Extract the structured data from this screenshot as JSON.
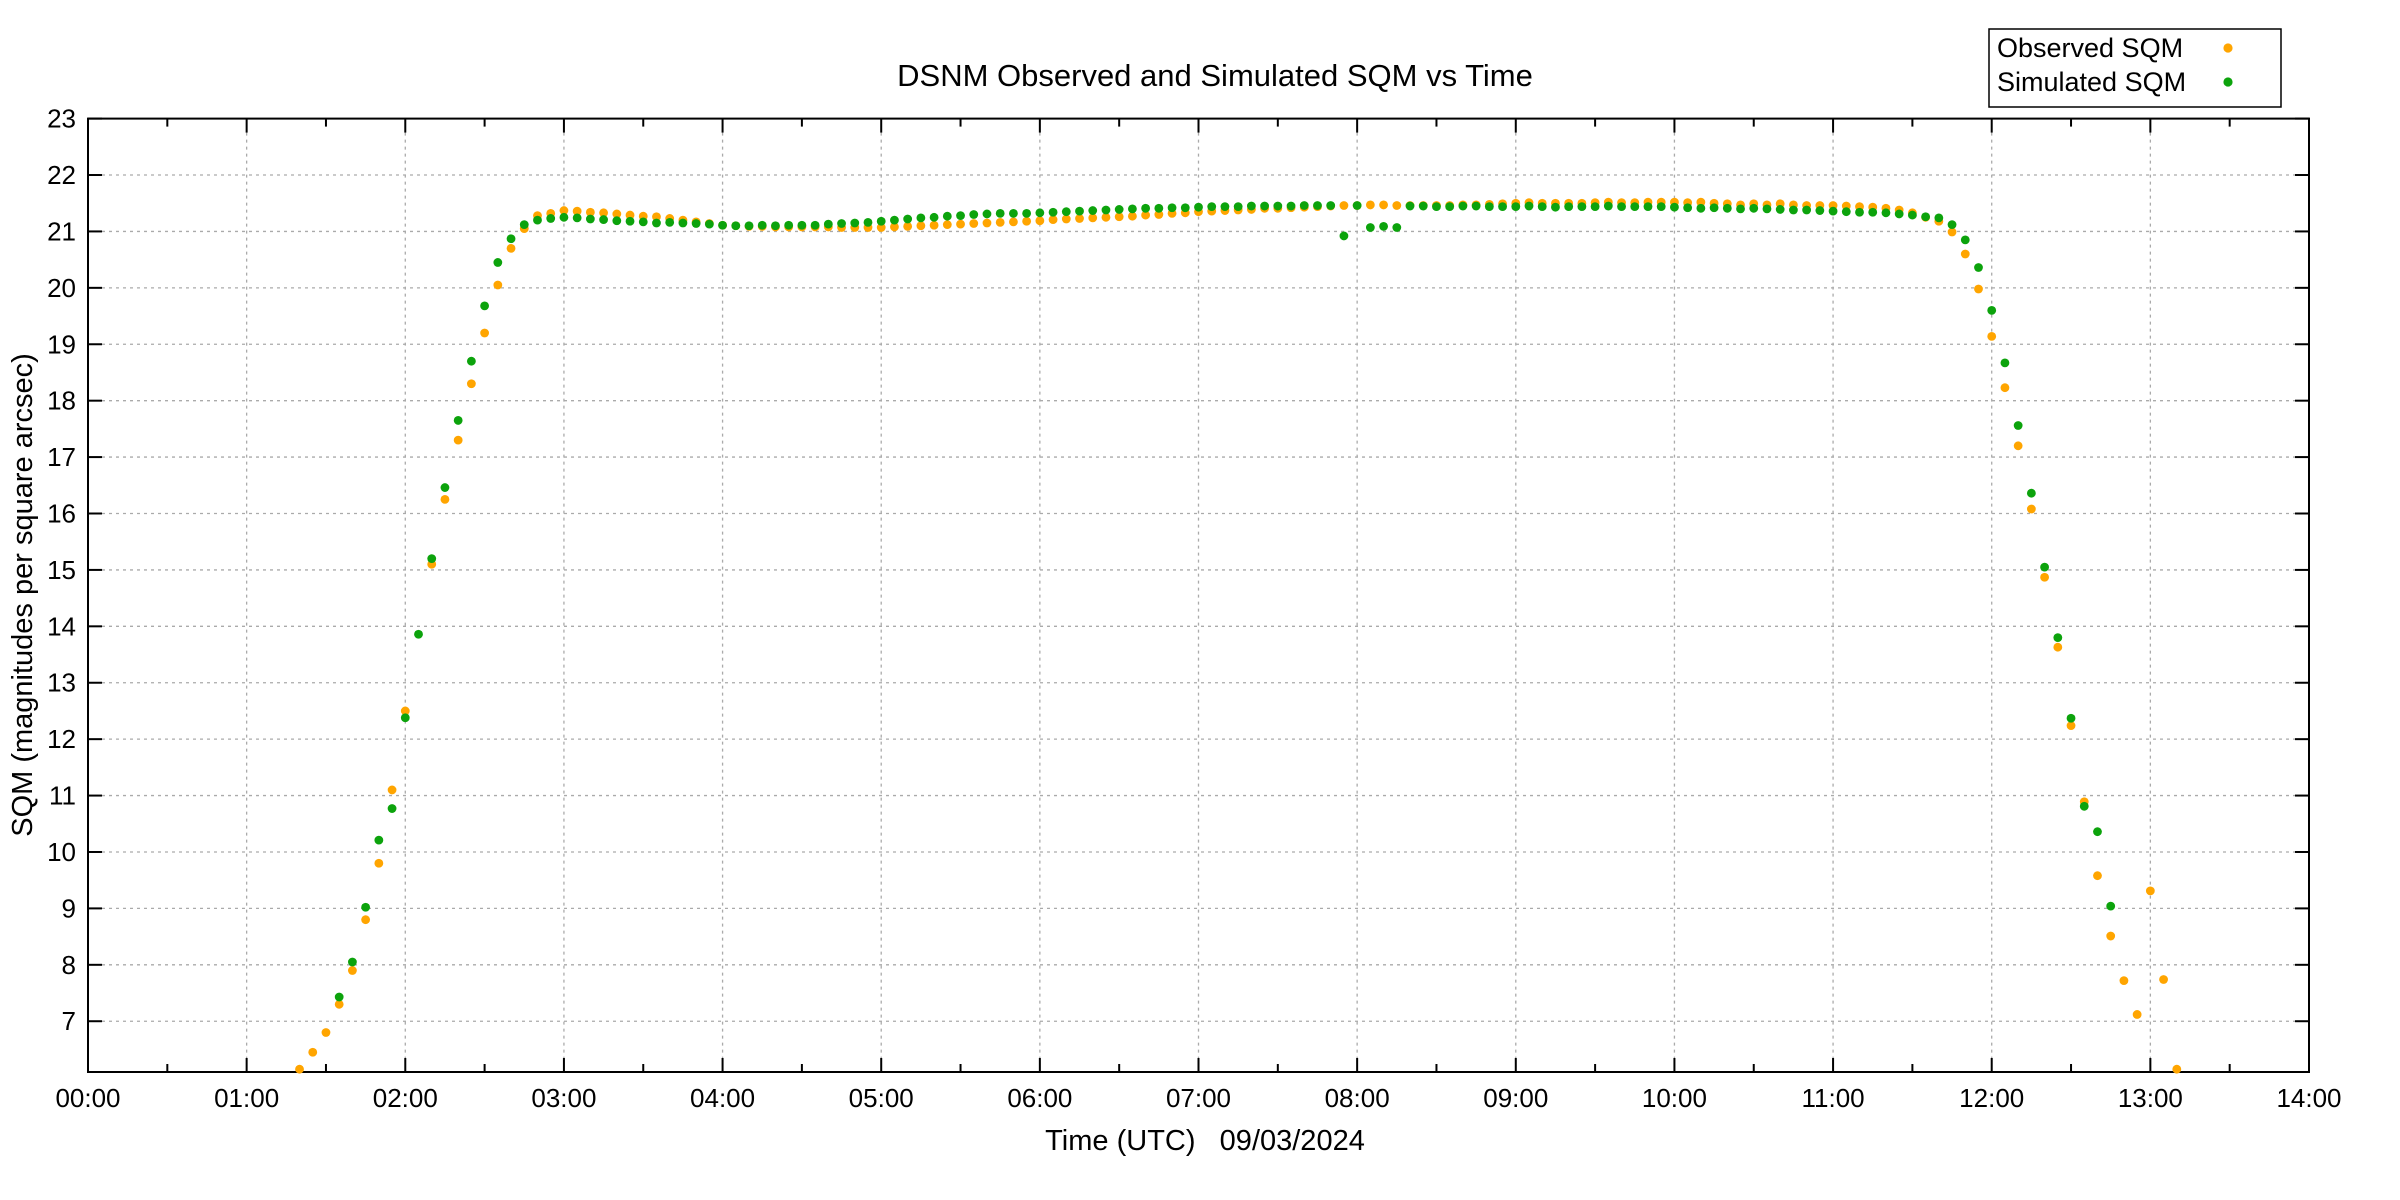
{
  "title": "DSNM Observed and Simulated SQM vs Time",
  "legend": {
    "position": "top-right",
    "items": [
      {
        "label": "Observed SQM",
        "color": "#ffa500"
      },
      {
        "label": "Simulated SQM",
        "color": "#0ca30c"
      }
    ]
  },
  "axes": {
    "label_color": "#00a070",
    "grid_color": "#aaaaaa",
    "border_color": "#000000",
    "x_label": "Time (UTC)   09/03/2024",
    "y_label": "SQM (magnitudes per square arcsec)",
    "x_tick_labels": [
      "00:00",
      "01:00",
      "02:00",
      "03:00",
      "04:00",
      "05:00",
      "06:00",
      "07:00",
      "08:00",
      "09:00",
      "10:00",
      "11:00",
      "12:00",
      "13:00",
      "14:00"
    ],
    "y_tick_labels": [
      7,
      8,
      9,
      10,
      11,
      12,
      13,
      14,
      15,
      16,
      17,
      18,
      19,
      20,
      21,
      22,
      23
    ]
  },
  "chart_data": {
    "type": "scatter",
    "title": "DSNM Observed and Simulated SQM vs Time",
    "xlabel": "Time (UTC)   09/03/2024",
    "ylabel": "SQM (magnitudes per square arcsec)",
    "xlim_hours": [
      0,
      14
    ],
    "ylim": [
      6.1,
      23
    ],
    "grid": true,
    "legend_position": "top-right",
    "x_ticks_hours": [
      0,
      1,
      2,
      3,
      4,
      5,
      6,
      7,
      8,
      9,
      10,
      11,
      12,
      13,
      14
    ],
    "y_ticks": [
      7,
      8,
      9,
      10,
      11,
      12,
      13,
      14,
      15,
      16,
      17,
      18,
      19,
      20,
      21,
      22,
      23
    ],
    "series": [
      {
        "name": "Observed SQM",
        "color": "#ffa500",
        "points": [
          [
            "01:20",
            6.15
          ],
          [
            "01:25",
            6.45
          ],
          [
            "01:30",
            6.8
          ],
          [
            "01:35",
            7.3
          ],
          [
            "01:40",
            7.9
          ],
          [
            "01:45",
            8.8
          ],
          [
            "01:50",
            9.8
          ],
          [
            "01:55",
            11.1
          ],
          [
            "02:00",
            12.5
          ],
          [
            "02:10",
            15.1
          ],
          [
            "02:15",
            16.25
          ],
          [
            "02:20",
            17.3
          ],
          [
            "02:25",
            18.3
          ],
          [
            "02:30",
            19.2
          ],
          [
            "02:35",
            20.05
          ],
          [
            "02:40",
            20.7
          ],
          [
            "02:45",
            21.05
          ],
          [
            "02:50",
            21.28
          ],
          [
            "02:55",
            21.32
          ],
          [
            "03:00",
            21.37
          ],
          [
            "03:05",
            21.36
          ],
          [
            "03:10",
            21.34
          ],
          [
            "03:15",
            21.33
          ],
          [
            "03:20",
            21.31
          ],
          [
            "03:25",
            21.29
          ],
          [
            "03:30",
            21.27
          ],
          [
            "03:35",
            21.26
          ],
          [
            "03:40",
            21.23
          ],
          [
            "03:45",
            21.2
          ],
          [
            "03:50",
            21.17
          ],
          [
            "03:55",
            21.14
          ],
          [
            "04:00",
            21.11
          ],
          [
            "04:05",
            21.1
          ],
          [
            "04:10",
            21.09
          ],
          [
            "04:15",
            21.09
          ],
          [
            "04:20",
            21.08
          ],
          [
            "04:25",
            21.08
          ],
          [
            "04:30",
            21.08
          ],
          [
            "04:35",
            21.08
          ],
          [
            "04:40",
            21.08
          ],
          [
            "04:45",
            21.07
          ],
          [
            "04:50",
            21.07
          ],
          [
            "04:55",
            21.07
          ],
          [
            "05:00",
            21.07
          ],
          [
            "05:05",
            21.08
          ],
          [
            "05:10",
            21.09
          ],
          [
            "05:15",
            21.1
          ],
          [
            "05:20",
            21.11
          ],
          [
            "05:25",
            21.12
          ],
          [
            "05:30",
            21.13
          ],
          [
            "05:35",
            21.14
          ],
          [
            "05:40",
            21.15
          ],
          [
            "05:45",
            21.16
          ],
          [
            "05:50",
            21.17
          ],
          [
            "05:55",
            21.18
          ],
          [
            "06:00",
            21.19
          ],
          [
            "06:05",
            21.21
          ],
          [
            "06:10",
            21.22
          ],
          [
            "06:15",
            21.23
          ],
          [
            "06:20",
            21.24
          ],
          [
            "06:25",
            21.25
          ],
          [
            "06:30",
            21.26
          ],
          [
            "06:35",
            21.27
          ],
          [
            "06:40",
            21.29
          ],
          [
            "06:45",
            21.3
          ],
          [
            "06:50",
            21.32
          ],
          [
            "06:55",
            21.33
          ],
          [
            "07:00",
            21.35
          ],
          [
            "07:05",
            21.36
          ],
          [
            "07:10",
            21.37
          ],
          [
            "07:15",
            21.38
          ],
          [
            "07:20",
            21.39
          ],
          [
            "07:25",
            21.41
          ],
          [
            "07:30",
            21.41
          ],
          [
            "07:35",
            21.42
          ],
          [
            "07:40",
            21.43
          ],
          [
            "07:45",
            21.44
          ],
          [
            "07:50",
            21.45
          ],
          [
            "07:55",
            21.46
          ],
          [
            "08:00",
            21.46
          ],
          [
            "08:05",
            21.47
          ],
          [
            "08:10",
            21.47
          ],
          [
            "08:15",
            21.46
          ],
          [
            "08:20",
            21.46
          ],
          [
            "08:25",
            21.46
          ],
          [
            "08:30",
            21.46
          ],
          [
            "08:35",
            21.46
          ],
          [
            "08:40",
            21.47
          ],
          [
            "08:45",
            21.47
          ],
          [
            "08:50",
            21.48
          ],
          [
            "08:55",
            21.49
          ],
          [
            "09:00",
            21.5
          ],
          [
            "09:05",
            21.51
          ],
          [
            "09:10",
            21.5
          ],
          [
            "09:15",
            21.5
          ],
          [
            "09:20",
            21.5
          ],
          [
            "09:25",
            21.5
          ],
          [
            "09:30",
            21.51
          ],
          [
            "09:35",
            21.52
          ],
          [
            "09:40",
            21.51
          ],
          [
            "09:45",
            21.51
          ],
          [
            "09:50",
            21.52
          ],
          [
            "09:55",
            21.52
          ],
          [
            "10:00",
            21.52
          ],
          [
            "10:05",
            21.51
          ],
          [
            "10:10",
            21.52
          ],
          [
            "10:15",
            21.5
          ],
          [
            "10:20",
            21.49
          ],
          [
            "10:25",
            21.47
          ],
          [
            "10:30",
            21.49
          ],
          [
            "10:35",
            21.47
          ],
          [
            "10:40",
            21.49
          ],
          [
            "10:45",
            21.47
          ],
          [
            "10:50",
            21.46
          ],
          [
            "10:55",
            21.46
          ],
          [
            "11:00",
            21.46
          ],
          [
            "11:05",
            21.45
          ],
          [
            "11:10",
            21.44
          ],
          [
            "11:15",
            21.43
          ],
          [
            "11:20",
            21.41
          ],
          [
            "11:25",
            21.38
          ],
          [
            "11:30",
            21.33
          ],
          [
            "11:35",
            21.25
          ],
          [
            "11:40",
            21.18
          ],
          [
            "11:45",
            20.99
          ],
          [
            "11:50",
            20.6
          ],
          [
            "11:55",
            19.98
          ],
          [
            "12:00",
            19.14
          ],
          [
            "12:05",
            18.23
          ],
          [
            "12:10",
            17.2
          ],
          [
            "12:15",
            16.08
          ],
          [
            "12:20",
            14.87
          ],
          [
            "12:25",
            13.63
          ],
          [
            "12:30",
            12.24
          ],
          [
            "12:35",
            10.89
          ],
          [
            "12:40",
            9.58
          ],
          [
            "12:45",
            8.51
          ],
          [
            "12:50",
            7.72
          ],
          [
            "12:55",
            7.12
          ],
          [
            "13:00",
            9.31
          ],
          [
            "13:05",
            7.74
          ],
          [
            "13:10",
            6.15
          ]
        ]
      },
      {
        "name": "Simulated SQM",
        "color": "#0ca30c",
        "points": [
          [
            "01:35",
            7.43
          ],
          [
            "01:40",
            8.05
          ],
          [
            "01:45",
            9.02
          ],
          [
            "01:50",
            10.21
          ],
          [
            "01:55",
            10.77
          ],
          [
            "02:00",
            12.38
          ],
          [
            "02:05",
            13.86
          ],
          [
            "02:10",
            15.2
          ],
          [
            "02:15",
            16.46
          ],
          [
            "02:20",
            17.65
          ],
          [
            "02:25",
            18.7
          ],
          [
            "02:30",
            19.68
          ],
          [
            "02:35",
            20.45
          ],
          [
            "02:40",
            20.87
          ],
          [
            "02:45",
            21.12
          ],
          [
            "02:50",
            21.2
          ],
          [
            "02:55",
            21.23
          ],
          [
            "03:00",
            21.25
          ],
          [
            "03:05",
            21.24
          ],
          [
            "03:10",
            21.22
          ],
          [
            "03:15",
            21.21
          ],
          [
            "03:20",
            21.19
          ],
          [
            "03:25",
            21.18
          ],
          [
            "03:30",
            21.17
          ],
          [
            "03:35",
            21.15
          ],
          [
            "03:40",
            21.16
          ],
          [
            "03:45",
            21.15
          ],
          [
            "03:50",
            21.14
          ],
          [
            "03:55",
            21.13
          ],
          [
            "04:00",
            21.11
          ],
          [
            "04:05",
            21.1
          ],
          [
            "04:10",
            21.1
          ],
          [
            "04:15",
            21.11
          ],
          [
            "04:20",
            21.1
          ],
          [
            "04:25",
            21.11
          ],
          [
            "04:30",
            21.11
          ],
          [
            "04:35",
            21.11
          ],
          [
            "04:40",
            21.13
          ],
          [
            "04:45",
            21.14
          ],
          [
            "04:50",
            21.15
          ],
          [
            "04:55",
            21.16
          ],
          [
            "05:00",
            21.18
          ],
          [
            "05:05",
            21.2
          ],
          [
            "05:10",
            21.22
          ],
          [
            "05:15",
            21.24
          ],
          [
            "05:20",
            21.25
          ],
          [
            "05:25",
            21.27
          ],
          [
            "05:30",
            21.28
          ],
          [
            "05:35",
            21.3
          ],
          [
            "05:40",
            21.31
          ],
          [
            "05:45",
            21.32
          ],
          [
            "05:50",
            21.32
          ],
          [
            "05:55",
            21.32
          ],
          [
            "06:00",
            21.33
          ],
          [
            "06:05",
            21.34
          ],
          [
            "06:10",
            21.35
          ],
          [
            "06:15",
            21.36
          ],
          [
            "06:20",
            21.37
          ],
          [
            "06:25",
            21.38
          ],
          [
            "06:30",
            21.39
          ],
          [
            "06:35",
            21.4
          ],
          [
            "06:40",
            21.41
          ],
          [
            "06:45",
            21.41
          ],
          [
            "06:50",
            21.42
          ],
          [
            "06:55",
            21.42
          ],
          [
            "07:00",
            21.43
          ],
          [
            "07:05",
            21.44
          ],
          [
            "07:10",
            21.44
          ],
          [
            "07:15",
            21.44
          ],
          [
            "07:20",
            21.45
          ],
          [
            "07:25",
            21.45
          ],
          [
            "07:30",
            21.45
          ],
          [
            "07:35",
            21.45
          ],
          [
            "07:40",
            21.46
          ],
          [
            "07:45",
            21.46
          ],
          [
            "07:50",
            21.46
          ],
          [
            "07:55",
            20.92
          ],
          [
            "08:00",
            21.46
          ],
          [
            "08:05",
            21.07
          ],
          [
            "08:10",
            21.09
          ],
          [
            "08:15",
            21.07
          ],
          [
            "08:20",
            21.45
          ],
          [
            "08:25",
            21.45
          ],
          [
            "08:30",
            21.44
          ],
          [
            "08:35",
            21.44
          ],
          [
            "08:40",
            21.45
          ],
          [
            "08:45",
            21.45
          ],
          [
            "08:50",
            21.44
          ],
          [
            "08:55",
            21.44
          ],
          [
            "09:00",
            21.44
          ],
          [
            "09:05",
            21.45
          ],
          [
            "09:10",
            21.44
          ],
          [
            "09:15",
            21.43
          ],
          [
            "09:20",
            21.44
          ],
          [
            "09:25",
            21.44
          ],
          [
            "09:30",
            21.44
          ],
          [
            "09:35",
            21.45
          ],
          [
            "09:40",
            21.44
          ],
          [
            "09:45",
            21.44
          ],
          [
            "09:50",
            21.44
          ],
          [
            "09:55",
            21.44
          ],
          [
            "10:00",
            21.43
          ],
          [
            "10:05",
            21.42
          ],
          [
            "10:10",
            21.41
          ],
          [
            "10:15",
            21.42
          ],
          [
            "10:20",
            21.41
          ],
          [
            "10:25",
            21.4
          ],
          [
            "10:30",
            21.41
          ],
          [
            "10:35",
            21.4
          ],
          [
            "10:40",
            21.39
          ],
          [
            "10:45",
            21.38
          ],
          [
            "10:50",
            21.38
          ],
          [
            "10:55",
            21.37
          ],
          [
            "11:00",
            21.36
          ],
          [
            "11:05",
            21.35
          ],
          [
            "11:10",
            21.34
          ],
          [
            "11:15",
            21.34
          ],
          [
            "11:20",
            21.33
          ],
          [
            "11:25",
            21.31
          ],
          [
            "11:30",
            21.29
          ],
          [
            "11:35",
            21.26
          ],
          [
            "11:40",
            21.24
          ],
          [
            "11:45",
            21.12
          ],
          [
            "11:50",
            20.85
          ],
          [
            "11:55",
            20.36
          ],
          [
            "12:00",
            19.6
          ],
          [
            "12:05",
            18.67
          ],
          [
            "12:10",
            17.56
          ],
          [
            "12:15",
            16.36
          ],
          [
            "12:20",
            15.05
          ],
          [
            "12:25",
            13.8
          ],
          [
            "12:30",
            12.37
          ],
          [
            "12:35",
            10.81
          ],
          [
            "12:40",
            10.36
          ],
          [
            "12:45",
            9.04
          ]
        ]
      }
    ]
  }
}
